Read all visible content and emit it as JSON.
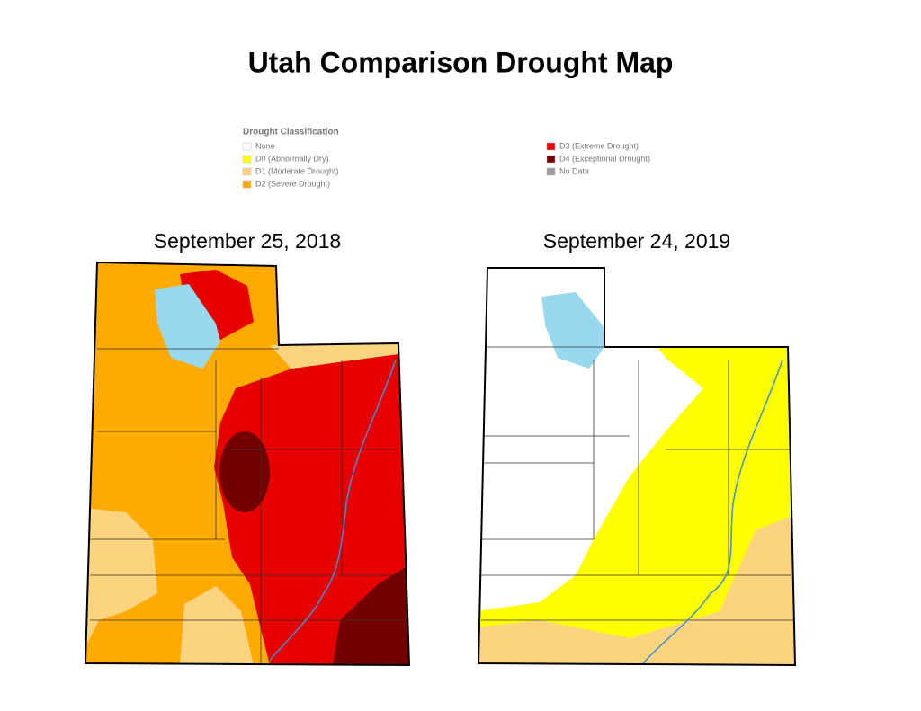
{
  "title": "Utah Comparison Drought Map",
  "legend": {
    "title": "Drought Classification",
    "items": [
      {
        "label": "None",
        "color": "#ffffff"
      },
      {
        "label": "D0 (Abnormally Dry)",
        "color": "#ffff00"
      },
      {
        "label": "D1 (Moderate Drought)",
        "color": "#fcd37f"
      },
      {
        "label": "D2 (Severe Drought)",
        "color": "#ffaa00"
      },
      {
        "label": "D3 (Extreme Drought)",
        "color": "#e60000"
      },
      {
        "label": "D4 (Exceptional Drought)",
        "color": "#730000"
      },
      {
        "label": "No Data",
        "color": "#9b9b9b"
      }
    ]
  },
  "maps": [
    {
      "date": "September 25, 2018"
    },
    {
      "date": "September 24, 2019"
    }
  ]
}
